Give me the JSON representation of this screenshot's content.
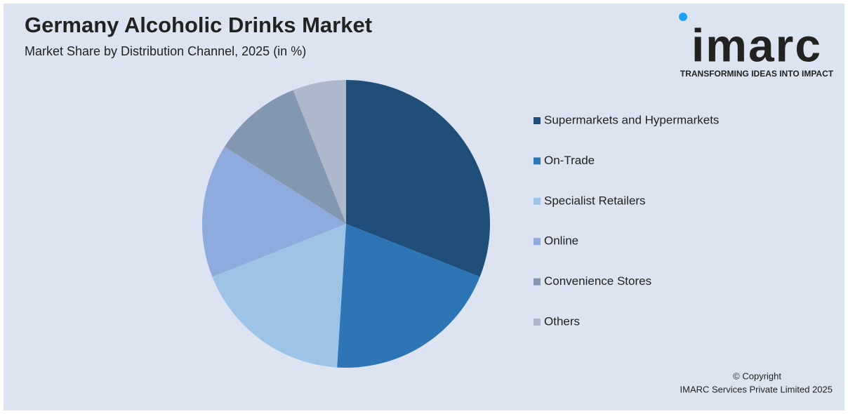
{
  "chart_data": {
    "type": "pie",
    "title": "Germany Alcoholic Drinks Market",
    "subtitle": "Market Share by Distribution Channel, 2025 (in %)",
    "categories": [
      "Supermarkets and Hypermarkets",
      "On-Trade",
      "Specialist Retailers",
      "Online",
      "Convenience Stores",
      "Others"
    ],
    "values": [
      31,
      20,
      18,
      15,
      10,
      6
    ],
    "colors": [
      "#1f4e79",
      "#2e75b6",
      "#9dc3e6",
      "#8faadc",
      "#8497b0",
      "#adb9ca"
    ],
    "legend": "right"
  },
  "logo": {
    "name": "imarc",
    "tagline": "TRANSFORMING IDEAS INTO IMPACT"
  },
  "footer": {
    "copyright": "© Copyright",
    "company": "IMARC Services Private Limited 2025"
  }
}
